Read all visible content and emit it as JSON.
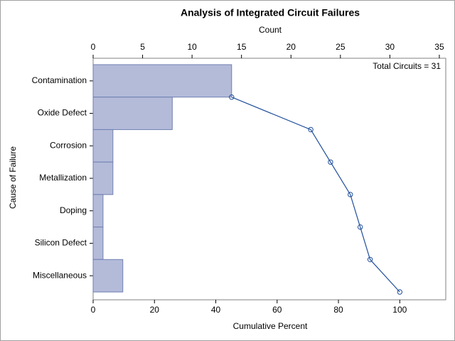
{
  "chart_data": {
    "type": "pareto",
    "title": "Analysis of Integrated Circuit Failures",
    "x2_label": "Count",
    "x_label": "Cumulative Percent",
    "y_label": "Cause of Failure",
    "annotation": "Total Circuits = 31",
    "categories": [
      "Contamination",
      "Oxide Defect",
      "Corrosion",
      "Metallization",
      "Doping",
      "Silicon Defect",
      "Miscellaneous"
    ],
    "counts": [
      14,
      8,
      2,
      2,
      1,
      1,
      3
    ],
    "bar_color": "#b4bbd9",
    "bar_edge_color": "#6f7fb0",
    "cumulative_percent": [
      45.16,
      70.97,
      77.42,
      83.87,
      87.1,
      90.32,
      100
    ],
    "line_color": "#1f4e9c",
    "xlim": [
      0,
      115
    ],
    "xticks": [
      0,
      20,
      40,
      60,
      80,
      100
    ],
    "x2lim": [
      0,
      35.65
    ],
    "x2ticks": [
      0,
      5,
      10,
      15,
      20,
      25,
      30,
      35
    ]
  }
}
